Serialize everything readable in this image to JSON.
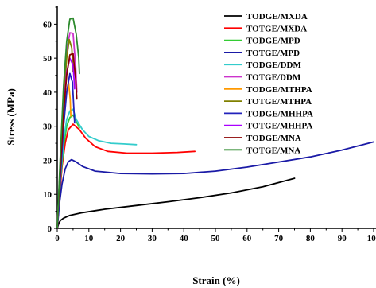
{
  "chart_data": {
    "type": "line",
    "title": "",
    "xlabel": "Strain (%)",
    "ylabel": "Stress (MPa)",
    "xlim": [
      0,
      100
    ],
    "ylim": [
      0,
      65
    ],
    "xticks": [
      "0",
      "10",
      "20",
      "30",
      "40",
      "50",
      "60",
      "70",
      "80",
      "90",
      "100"
    ],
    "yticks": [
      "0",
      "10",
      "20",
      "30",
      "40",
      "50",
      "60"
    ],
    "legend_position": "top-right",
    "grid": false,
    "series": [
      {
        "name": "TODGE/MXDA",
        "color": "#000000",
        "points": [
          [
            0,
            0
          ],
          [
            0.5,
            1.5
          ],
          [
            1,
            2.3
          ],
          [
            2,
            3.0
          ],
          [
            4,
            3.8
          ],
          [
            8,
            4.6
          ],
          [
            15,
            5.6
          ],
          [
            25,
            6.7
          ],
          [
            35,
            7.8
          ],
          [
            45,
            9.0
          ],
          [
            55,
            10.4
          ],
          [
            65,
            12.2
          ],
          [
            75,
            14.7
          ]
        ]
      },
      {
        "name": "TOTGE/MXDA",
        "color": "#ff0000",
        "points": [
          [
            0,
            0
          ],
          [
            0.8,
            10
          ],
          [
            1.5,
            18
          ],
          [
            2.5,
            25
          ],
          [
            3.5,
            29
          ],
          [
            5,
            30.6
          ],
          [
            7,
            29
          ],
          [
            9,
            26.5
          ],
          [
            12,
            24
          ],
          [
            16,
            22.6
          ],
          [
            22,
            22.1
          ],
          [
            30,
            22.1
          ],
          [
            38,
            22.3
          ],
          [
            43.5,
            22.6
          ]
        ]
      },
      {
        "name": "TODGE/MPD",
        "color": "#33cc33",
        "points": [
          [
            0,
            0
          ],
          [
            1,
            14
          ],
          [
            2,
            24
          ],
          [
            3,
            30
          ],
          [
            4,
            32.6
          ],
          [
            5,
            33.3
          ],
          [
            6,
            31.5
          ],
          [
            7,
            29.5
          ]
        ]
      },
      {
        "name": "TOTGE/MPD",
        "color": "#1a1aa6",
        "points": [
          [
            0,
            0
          ],
          [
            0.8,
            8
          ],
          [
            1.5,
            13
          ],
          [
            2.5,
            17.5
          ],
          [
            3.5,
            19.6
          ],
          [
            4.5,
            20.2
          ],
          [
            6,
            19.5
          ],
          [
            8,
            18.2
          ],
          [
            12,
            16.8
          ],
          [
            20,
            16.1
          ],
          [
            30,
            16.0
          ],
          [
            40,
            16.1
          ],
          [
            50,
            16.8
          ],
          [
            60,
            18.0
          ],
          [
            70,
            19.5
          ],
          [
            80,
            21.0
          ],
          [
            90,
            23.0
          ],
          [
            100,
            25.4
          ]
        ]
      },
      {
        "name": "TODGE/DDM",
        "color": "#33cccc",
        "points": [
          [
            0,
            0
          ],
          [
            1,
            15
          ],
          [
            2,
            26
          ],
          [
            3,
            32
          ],
          [
            4,
            34.5
          ],
          [
            5,
            35.0
          ],
          [
            6,
            32
          ],
          [
            8,
            29
          ],
          [
            10,
            27
          ],
          [
            13,
            25.8
          ],
          [
            17,
            25.0
          ],
          [
            21,
            24.8
          ],
          [
            25,
            24.6
          ]
        ]
      },
      {
        "name": "TOTGE/DDM",
        "color": "#cc33cc",
        "points": [
          [
            0,
            0
          ],
          [
            1,
            20
          ],
          [
            2,
            38
          ],
          [
            3,
            52
          ],
          [
            4,
            57.5
          ],
          [
            5,
            57.3
          ],
          [
            5.8,
            48
          ],
          [
            6.2,
            40
          ]
        ]
      },
      {
        "name": "TODGE/MTHPA",
        "color": "#ff9900",
        "points": [
          [
            0,
            0
          ],
          [
            1,
            18
          ],
          [
            2,
            32
          ],
          [
            3,
            40
          ],
          [
            3.6,
            42.8
          ],
          [
            4.1,
            38
          ],
          [
            4.3,
            33
          ]
        ]
      },
      {
        "name": "TOTGE/MTHPA",
        "color": "#808000",
        "points": [
          [
            0,
            0
          ],
          [
            1,
            20
          ],
          [
            2,
            38
          ],
          [
            3,
            50
          ],
          [
            3.8,
            55.5
          ],
          [
            4.6,
            53
          ],
          [
            5,
            46
          ]
        ]
      },
      {
        "name": "TODGE/MHHPA",
        "color": "#2222bb",
        "points": [
          [
            0,
            0
          ],
          [
            1,
            15
          ],
          [
            2,
            30
          ],
          [
            3,
            40
          ],
          [
            4,
            45.5
          ],
          [
            4.8,
            43
          ],
          [
            5.2,
            36
          ],
          [
            5.5,
            31
          ]
        ]
      },
      {
        "name": "TOTGE/MHHPA",
        "color": "#aa00ff",
        "points": [
          [
            0,
            0
          ],
          [
            1,
            19
          ],
          [
            2,
            35
          ],
          [
            3,
            46
          ],
          [
            4,
            50
          ],
          [
            5,
            48
          ],
          [
            5.5,
            41
          ]
        ]
      },
      {
        "name": "TODGE/MNA",
        "color": "#8b0000",
        "points": [
          [
            0,
            0
          ],
          [
            1,
            18
          ],
          [
            2,
            34
          ],
          [
            3,
            45
          ],
          [
            4,
            51
          ],
          [
            5,
            51.4
          ],
          [
            5.8,
            44
          ],
          [
            6.2,
            38
          ]
        ]
      },
      {
        "name": "TOTGE/MNA",
        "color": "#2e8b2e",
        "points": [
          [
            0,
            0
          ],
          [
            1,
            22
          ],
          [
            2,
            42
          ],
          [
            3,
            55
          ],
          [
            4,
            61.5
          ],
          [
            5,
            61.8
          ],
          [
            6,
            57
          ],
          [
            6.8,
            50
          ],
          [
            7,
            45.5
          ]
        ]
      }
    ]
  }
}
